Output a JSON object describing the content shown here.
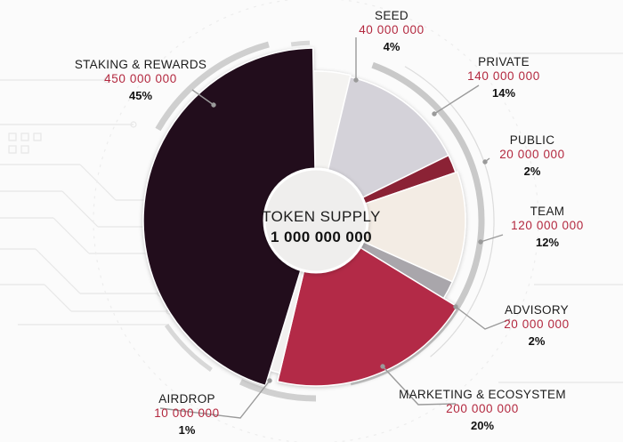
{
  "center": {
    "title": "TOKEN SUPPLY",
    "value": "1 000 000 000"
  },
  "colors": {
    "staking": "#210e1e",
    "seed": "#f4f3f1",
    "private": "#d4d2d9",
    "public": "#8b2035",
    "team": "#f3ece4",
    "advisory": "#a9a6ab",
    "marketing": "#b32a47",
    "airdrop": "#f1f0ef",
    "accent": "#b3283f"
  },
  "chart_data": {
    "type": "pie",
    "title": "",
    "total": 1000000000,
    "slices": [
      {
        "key": "seed",
        "label": "SEED",
        "value": 40000000,
        "display_value": "40 000 000",
        "percent_label": "4%",
        "percent": 4
      },
      {
        "key": "private",
        "label": "PRIVATE",
        "value": 140000000,
        "display_value": "140 000 000",
        "percent_label": "14%",
        "percent": 14
      },
      {
        "key": "public",
        "label": "PUBLIC",
        "value": 20000000,
        "display_value": "20 000 000",
        "percent_label": "2%",
        "percent": 2
      },
      {
        "key": "team",
        "label": "TEAM",
        "value": 120000000,
        "display_value": "120 000 000",
        "percent_label": "12%",
        "percent": 12
      },
      {
        "key": "advisory",
        "label": "ADVISORY",
        "value": 20000000,
        "display_value": "20 000 000",
        "percent_label": "2%",
        "percent": 2
      },
      {
        "key": "marketing",
        "label": "MARKETING & ECOSYSTEM",
        "value": 200000000,
        "display_value": "200 000 000",
        "percent_label": "20%",
        "percent": 20
      },
      {
        "key": "airdrop",
        "label": "AIRDROP",
        "value": 10000000,
        "display_value": "10 000 000",
        "percent_label": "1%",
        "percent": 1
      },
      {
        "key": "staking",
        "label": "STAKING & REWARDS",
        "value": 450000000,
        "display_value": "450 000 000",
        "percent_label": "45%",
        "percent": 45
      }
    ]
  }
}
